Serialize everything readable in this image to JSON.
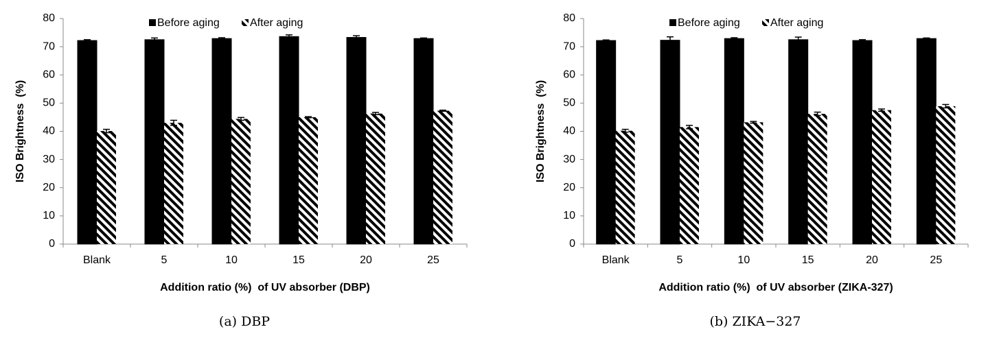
{
  "chart_data": [
    {
      "type": "bar",
      "caption": "(a) DBP",
      "xlabel": "Addition ratio (%)  of UV absorber (DBP)",
      "ylabel": "ISO Brightness  (%)",
      "categories": [
        "Blank",
        "5",
        "10",
        "15",
        "20",
        "25"
      ],
      "series": [
        {
          "name": "Before aging",
          "color": "#000000",
          "pattern": "solid",
          "values": [
            72.2,
            72.5,
            72.9,
            73.6,
            73.3,
            72.9
          ],
          "errors": [
            0.3,
            0.6,
            0.3,
            0.6,
            0.6,
            0.2
          ]
        },
        {
          "name": "After aging",
          "color": "#000000",
          "pattern": "diagonal",
          "values": [
            40.1,
            43.0,
            44.4,
            45.0,
            46.3,
            47.3
          ],
          "errors": [
            0.6,
            0.9,
            0.5,
            0.2,
            0.4,
            0.2
          ]
        }
      ],
      "ylim": [
        0,
        80
      ],
      "yticks": [
        0,
        10,
        20,
        30,
        40,
        50,
        60,
        70,
        80
      ],
      "legend": "top"
    },
    {
      "type": "bar",
      "caption": "(b) ZIKA−327",
      "xlabel": "Addition ratio (%)  of UV absorber (ZIKA-327)",
      "ylabel": "ISO Brightness  (%)",
      "categories": [
        "Blank",
        "5",
        "10",
        "15",
        "20",
        "25"
      ],
      "series": [
        {
          "name": "Before aging",
          "color": "#000000",
          "pattern": "solid",
          "values": [
            72.2,
            72.3,
            72.9,
            72.5,
            72.2,
            72.9
          ],
          "errors": [
            0.2,
            1.2,
            0.3,
            0.9,
            0.3,
            0.2
          ]
        },
        {
          "name": "After aging",
          "color": "#000000",
          "pattern": "diagonal",
          "values": [
            40.2,
            41.5,
            43.2,
            46.2,
            47.5,
            48.9
          ],
          "errors": [
            0.5,
            0.6,
            0.3,
            0.6,
            0.4,
            0.6
          ]
        }
      ],
      "ylim": [
        0,
        80
      ],
      "yticks": [
        0,
        10,
        20,
        30,
        40,
        50,
        60,
        70,
        80
      ],
      "legend": "top"
    }
  ]
}
